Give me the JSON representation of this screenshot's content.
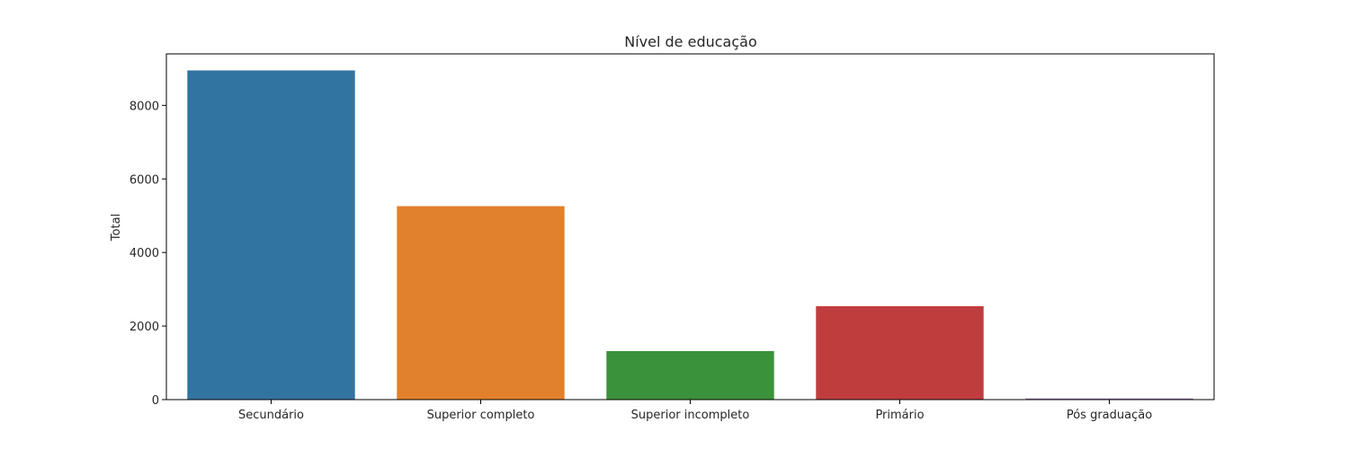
{
  "chart_data": {
    "type": "bar",
    "title": "Nível de educação",
    "xlabel": "",
    "ylabel": "Total",
    "categories": [
      "Secundário",
      "Superior completo",
      "Superior incompleto",
      "Primário",
      "Pós graduação"
    ],
    "values": [
      8950,
      5260,
      1320,
      2540,
      30
    ],
    "colors": [
      "#3274a1",
      "#e1812c",
      "#3a923a",
      "#c03d3e",
      "#9372b2"
    ],
    "ylim": [
      0,
      9400
    ],
    "yticks": [
      0,
      2000,
      4000,
      6000,
      8000
    ],
    "grid": false,
    "legend": "none"
  }
}
